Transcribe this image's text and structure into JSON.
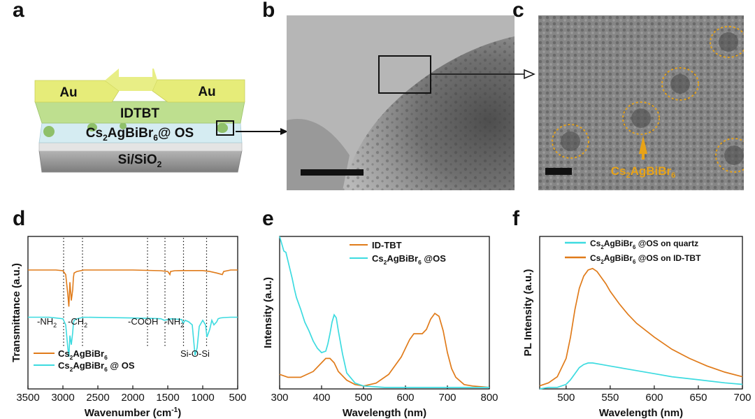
{
  "panel_labels": {
    "a": "a",
    "b": "b",
    "c": "c",
    "d": "d",
    "e": "e",
    "f": "f"
  },
  "device": {
    "au_left": "Au",
    "au_right": "Au",
    "idtbt": "IDTBT",
    "layer_main": "Cs",
    "layer_sub2": "2",
    "layer_mid": "AgBiBr",
    "layer_sub6": "6",
    "layer_tail": "@ OS",
    "substrate_main": "Si/SiO",
    "substrate_sub": "2",
    "colors": {
      "au": "#e5ea76",
      "idtbt": "#b7d98a",
      "perov": "#cfe8ef",
      "si": "#8f8f8f",
      "particle": "#8fc06a"
    }
  },
  "tem_c": {
    "label_main": "Cs",
    "label_sub2": "2",
    "label_mid": "AgBiBr",
    "label_sub6": "6",
    "circle_color": "#e8a317"
  },
  "chart_data": [
    {
      "type": "line",
      "panel": "d",
      "xlabel_main": "Wavenumber (cm",
      "xlabel_sup": "-1",
      "xlabel_tail": ")",
      "ylabel": "Transmittance (a.u.)",
      "xlim": [
        3500,
        500
      ],
      "xticks": [
        3500,
        3000,
        2500,
        2000,
        1500,
        1000,
        500
      ],
      "dotted_lines": [
        2990,
        2720,
        1790,
        1540,
        1275,
        945
      ],
      "annotations": [
        {
          "main": "-NH",
          "sub": "2"
        },
        {
          "main": "-CH",
          "sub": "2"
        },
        {
          "main": "-COOH",
          "sub": ""
        },
        {
          "main": "-NH",
          "sub": "2"
        },
        {
          "main": "Si-O-Si",
          "sub": ""
        }
      ],
      "series": [
        {
          "name_main": "Cs",
          "name_sub2": "2",
          "name_mid": "AgBiBr",
          "name_sub6": "6",
          "name_tail": "",
          "color": "#e07b1a",
          "offset": 0.78,
          "x": [
            3500,
            3100,
            3000,
            2960,
            2930,
            2915,
            2900,
            2880,
            2860,
            2850,
            2840,
            2800,
            2700,
            2000,
            1600,
            1500,
            1470,
            1460,
            1400,
            1300,
            1000,
            900,
            800,
            720,
            700,
            600,
            500
          ],
          "y": [
            0,
            0,
            -0.005,
            -0.03,
            -0.16,
            -0.24,
            -0.08,
            -0.2,
            -0.13,
            -0.05,
            -0.02,
            -0.01,
            0,
            0,
            -0.005,
            -0.01,
            -0.03,
            -0.01,
            -0.005,
            -0.004,
            -0.004,
            -0.01,
            -0.02,
            -0.03,
            -0.01,
            0,
            0
          ]
        },
        {
          "name_main": "Cs",
          "name_sub2": "2",
          "name_mid": "AgBiBr",
          "name_sub6": "6",
          "name_tail": "@ OS",
          "color": "#3ddbe0",
          "offset": 0.47,
          "x": [
            3500,
            3200,
            3100,
            3000,
            2960,
            2930,
            2915,
            2900,
            2880,
            2860,
            2850,
            2840,
            2800,
            2700,
            2000,
            1700,
            1600,
            1550,
            1500,
            1450,
            1300,
            1280,
            1250,
            1200,
            1150,
            1110,
            1080,
            1050,
            1000,
            960,
            940,
            900,
            870,
            840,
            800,
            780,
            750,
            700,
            600,
            500
          ],
          "y": [
            0,
            0,
            -0.005,
            -0.01,
            -0.05,
            -0.2,
            -0.26,
            -0.12,
            -0.18,
            -0.1,
            -0.04,
            -0.02,
            -0.01,
            0,
            -0.005,
            -0.008,
            -0.01,
            -0.02,
            -0.015,
            -0.01,
            -0.015,
            -0.04,
            -0.02,
            -0.03,
            -0.05,
            -0.25,
            -0.2,
            -0.06,
            -0.02,
            -0.05,
            -0.13,
            -0.08,
            -0.02,
            -0.05,
            -0.03,
            -0.01,
            -0.005,
            -0.002,
            0,
            0
          ]
        }
      ]
    },
    {
      "type": "line",
      "panel": "e",
      "xlabel": "Wavelength (nm)",
      "ylabel": "Intensity (a.u.)",
      "xlim": [
        300,
        800
      ],
      "xticks": [
        300,
        400,
        500,
        600,
        700,
        800
      ],
      "series": [
        {
          "name_main": "ID-TBT",
          "name_sub2": "",
          "name_mid": "",
          "name_sub6": "",
          "name_tail": "",
          "color": "#e07b1a",
          "x": [
            300,
            320,
            350,
            380,
            400,
            410,
            420,
            430,
            440,
            460,
            480,
            500,
            530,
            560,
            590,
            610,
            620,
            630,
            640,
            650,
            660,
            670,
            680,
            690,
            700,
            710,
            720,
            740,
            760,
            800
          ],
          "y": [
            0.1,
            0.08,
            0.08,
            0.12,
            0.18,
            0.21,
            0.21,
            0.18,
            0.12,
            0.06,
            0.03,
            0.02,
            0.04,
            0.1,
            0.22,
            0.34,
            0.38,
            0.38,
            0.38,
            0.41,
            0.48,
            0.52,
            0.5,
            0.4,
            0.25,
            0.14,
            0.08,
            0.03,
            0.02,
            0.01
          ]
        },
        {
          "name_main": "Cs",
          "name_sub2": "2",
          "name_mid": "AgBiBr",
          "name_sub6": "6",
          "name_tail": "@OS",
          "color": "#3ddbe0",
          "x": [
            300,
            305,
            310,
            315,
            320,
            325,
            330,
            335,
            340,
            350,
            360,
            370,
            380,
            390,
            400,
            410,
            415,
            420,
            425,
            430,
            435,
            440,
            450,
            460,
            480,
            500,
            550,
            600,
            700,
            800
          ],
          "y": [
            1.05,
            1.0,
            0.95,
            0.94,
            0.88,
            0.82,
            0.76,
            0.69,
            0.63,
            0.55,
            0.46,
            0.4,
            0.33,
            0.28,
            0.25,
            0.26,
            0.31,
            0.38,
            0.46,
            0.51,
            0.49,
            0.4,
            0.24,
            0.11,
            0.04,
            0.02,
            0.01,
            0.01,
            0.01,
            0.01
          ]
        }
      ]
    },
    {
      "type": "line",
      "panel": "f",
      "xlabel": "Wavelength (nm)",
      "ylabel": "PL Intensity (a.u.)",
      "xlim": [
        470,
        700
      ],
      "xticks": [
        500,
        550,
        600,
        650,
        700
      ],
      "series": [
        {
          "name_main": "Cs",
          "name_sub2": "2",
          "name_mid": "AgBiBr",
          "name_sub6": "6",
          "name_tail": "@OS on quartz",
          "color": "#3ddbe0",
          "x": [
            470,
            480,
            490,
            500,
            505,
            510,
            515,
            520,
            525,
            530,
            540,
            550,
            570,
            600,
            620,
            650,
            680,
            700
          ],
          "y": [
            0.0,
            0.01,
            0.01,
            0.03,
            0.06,
            0.1,
            0.14,
            0.16,
            0.17,
            0.17,
            0.16,
            0.15,
            0.13,
            0.1,
            0.08,
            0.06,
            0.04,
            0.03
          ]
        },
        {
          "name_main": "Cs",
          "name_sub2": "2",
          "name_mid": "AgBiBr",
          "name_sub6": "6",
          "name_tail": "@OS on ID-TBT",
          "color": "#e07b1a",
          "x": [
            470,
            480,
            490,
            500,
            505,
            510,
            515,
            520,
            525,
            530,
            535,
            540,
            545,
            550,
            560,
            570,
            580,
            600,
            620,
            640,
            660,
            680,
            700
          ],
          "y": [
            0.02,
            0.04,
            0.08,
            0.2,
            0.34,
            0.52,
            0.66,
            0.74,
            0.78,
            0.79,
            0.77,
            0.73,
            0.69,
            0.64,
            0.56,
            0.49,
            0.43,
            0.34,
            0.26,
            0.2,
            0.15,
            0.11,
            0.08
          ]
        }
      ]
    }
  ]
}
